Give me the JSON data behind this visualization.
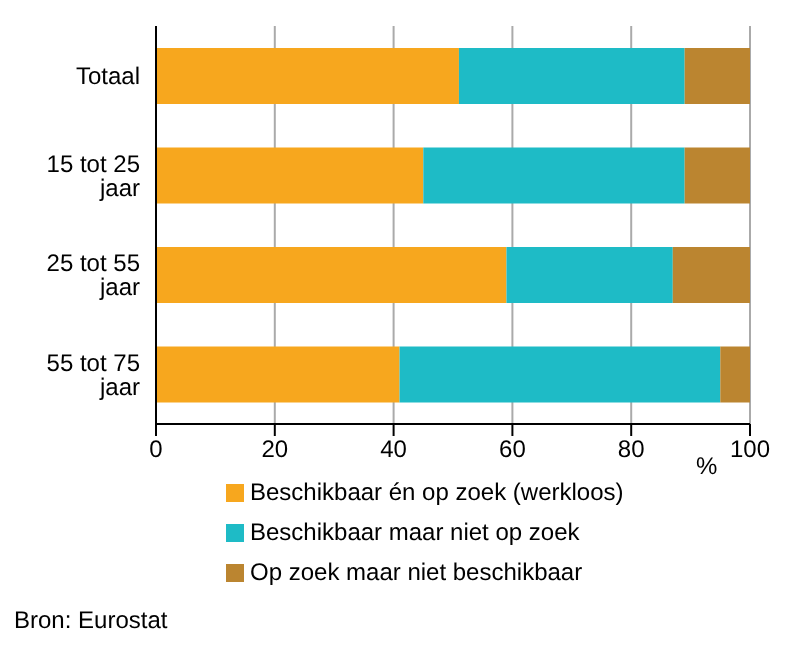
{
  "chart_data": {
    "type": "bar",
    "orientation": "horizontal",
    "stacked": true,
    "categories": [
      "Totaal",
      "15 tot 25 jaar",
      "25 tot 55 jaar",
      "55 tot 75 jaar"
    ],
    "series": [
      {
        "name": "Beschikbaar én op zoek (werkloos)",
        "color": "#f7a71e",
        "values": [
          51,
          45,
          59,
          41
        ]
      },
      {
        "name": "Beschikbaar maar niet op zoek",
        "color": "#1ebbc6",
        "values": [
          38,
          44,
          28,
          54
        ]
      },
      {
        "name": "Op zoek maar niet beschikbaar",
        "color": "#bb8530",
        "values": [
          11,
          11,
          13,
          5
        ]
      }
    ],
    "xlim": [
      0,
      100
    ],
    "xticks": [
      0,
      20,
      40,
      60,
      80,
      100
    ],
    "xlabel": "%",
    "grid": "x",
    "legend": "bottom",
    "annotations": [
      "Bron: Eurostat"
    ]
  }
}
